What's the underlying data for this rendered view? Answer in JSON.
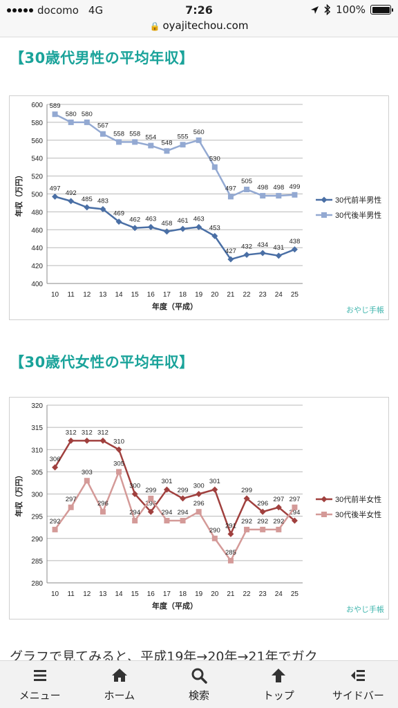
{
  "status_bar": {
    "carrier": "docomo",
    "network": "4G",
    "time": "7:26",
    "battery": "100%"
  },
  "url_bar": {
    "url": "oyajitechou.com"
  },
  "sections": [
    {
      "heading": "【30歳代男性の平均年収】"
    },
    {
      "heading": "【30歳代女性の平均年収】"
    }
  ],
  "chart_data": [
    {
      "type": "line",
      "xlabel": "年度（平成）",
      "ylabel": "年収（万円）",
      "ylim": [
        400,
        600
      ],
      "ytick_step": 20,
      "x": [
        "10",
        "11",
        "12",
        "13",
        "14",
        "15",
        "16",
        "17",
        "18",
        "19",
        "20",
        "21",
        "22",
        "23",
        "24",
        "25"
      ],
      "series": [
        {
          "name": "30代前半男性",
          "color": "#4a6fa5",
          "marker": "diamond",
          "values": [
            497,
            492,
            485,
            483,
            469,
            462,
            463,
            458,
            461,
            463,
            453,
            427,
            432,
            434,
            431,
            438
          ]
        },
        {
          "name": "30代後半男性",
          "color": "#93a9d2",
          "marker": "square",
          "values": [
            589,
            580,
            580,
            567,
            558,
            558,
            554,
            548,
            555,
            560,
            530,
            497,
            505,
            498,
            498,
            499
          ]
        }
      ],
      "legend": "right",
      "watermark": "おやじ手帳"
    },
    {
      "type": "line",
      "xlabel": "年度（平成）",
      "ylabel": "年収（万円）",
      "ylim": [
        280,
        320
      ],
      "ytick_step": 5,
      "x": [
        "10",
        "11",
        "12",
        "13",
        "14",
        "15",
        "16",
        "17",
        "18",
        "19",
        "20",
        "21",
        "22",
        "23",
        "24",
        "25"
      ],
      "series": [
        {
          "name": "30代前半女性",
          "color": "#a0403e",
          "marker": "diamond",
          "values": [
            306,
            312,
            312,
            312,
            310,
            300,
            296,
            301,
            299,
            300,
            301,
            291,
            299,
            296,
            297,
            294
          ]
        },
        {
          "name": "30代後半女性",
          "color": "#d49a98",
          "marker": "square",
          "values": [
            292,
            297,
            303,
            296,
            305,
            294,
            299,
            294,
            294,
            296,
            290,
            285,
            292,
            292,
            292,
            297
          ]
        }
      ],
      "legend": "right",
      "watermark": "おやじ手帳"
    }
  ],
  "body_text": "グラフで見てみると、平成19年→20年→21年でガク",
  "bottom_nav": [
    {
      "label": "メニュー",
      "icon": "menu-icon"
    },
    {
      "label": "ホーム",
      "icon": "home-icon"
    },
    {
      "label": "検索",
      "icon": "search-icon"
    },
    {
      "label": "トップ",
      "icon": "arrow-up-icon"
    },
    {
      "label": "サイドバー",
      "icon": "sidebar-icon"
    }
  ]
}
